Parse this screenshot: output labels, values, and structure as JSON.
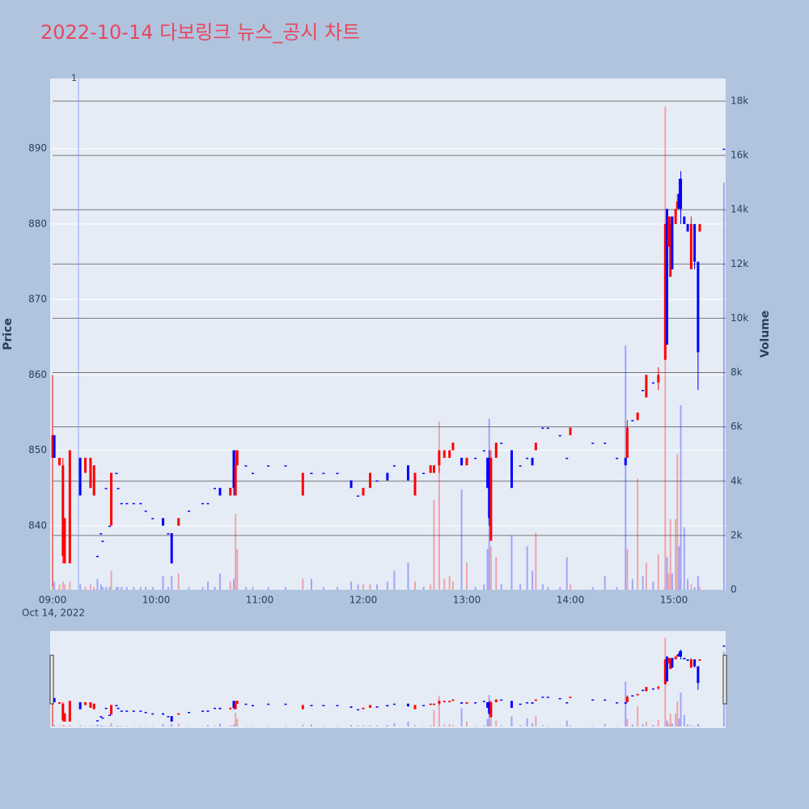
{
  "chart_data": {
    "type": "candlestick",
    "title": "2022-10-14 다보링크 뉴스_공시 차트",
    "y_title": "Price",
    "y2_title": "Volume",
    "date_label": "Oct 14, 2022",
    "xlim": [
      "09:00",
      "15:30"
    ],
    "xticks": [
      "09:00",
      "10:00",
      "11:00",
      "12:00",
      "13:00",
      "14:00",
      "15:00"
    ],
    "ylim": [
      831.5,
      899.3
    ],
    "yticks": [
      840,
      850,
      860,
      870,
      880,
      890
    ],
    "y2lim": [
      0,
      18834
    ],
    "y2ticks": [
      0,
      {
        "value": 2000,
        "label": "2k"
      },
      {
        "value": 4000,
        "label": "4k"
      },
      {
        "value": 6000,
        "label": "6k"
      },
      {
        "value": 8000,
        "label": "8k"
      },
      {
        "value": 10000,
        "label": "10k"
      },
      {
        "value": 12000,
        "label": "12k"
      },
      {
        "value": 14000,
        "label": "14k"
      },
      {
        "value": 16000,
        "label": "16k"
      },
      {
        "value": 18000,
        "label": "18k"
      }
    ],
    "increasing_color": "#ff0000",
    "decreasing_color": "#0000ff",
    "volume_up_color": "rgba(255,0,0,0.3)",
    "volume_down_color": "rgba(0,0,255,0.3)",
    "grid": true,
    "rangeslider": true,
    "annotations": [
      {
        "x": "09:15",
        "text": "1"
      }
    ],
    "x": [
      "09:00",
      "09:01",
      "09:04",
      "09:06",
      "09:07",
      "09:10",
      "09:16",
      "09:19",
      "09:22",
      "09:24",
      "09:26",
      "09:28",
      "09:29",
      "09:31",
      "09:33",
      "09:34",
      "09:37",
      "09:38",
      "09:40",
      "09:43",
      "09:47",
      "09:51",
      "09:54",
      "09:58",
      "10:04",
      "10:07",
      "10:09",
      "10:13",
      "10:19",
      "10:27",
      "10:30",
      "10:34",
      "10:37",
      "10:43",
      "10:45",
      "10:46",
      "10:47",
      "10:52",
      "10:56",
      "11:05",
      "11:15",
      "11:25",
      "11:30",
      "11:37",
      "11:45",
      "11:53",
      "11:57",
      "12:00",
      "12:04",
      "12:08",
      "12:14",
      "12:18",
      "12:26",
      "12:30",
      "12:35",
      "12:39",
      "12:41",
      "12:44",
      "12:47",
      "12:50",
      "12:52",
      "12:57",
      "13:00",
      "13:05",
      "13:10",
      "13:12",
      "13:13",
      "13:14",
      "13:17",
      "13:20",
      "13:26",
      "13:31",
      "13:35",
      "13:38",
      "13:40",
      "13:44",
      "13:47",
      "13:54",
      "13:58",
      "14:00",
      "14:13",
      "14:20",
      "14:27",
      "14:32",
      "14:33",
      "14:36",
      "14:39",
      "14:42",
      "14:44",
      "14:48",
      "14:51",
      "14:55",
      "14:56",
      "14:57",
      "14:58",
      "14:59",
      "15:01",
      "15:02",
      "15:03",
      "15:04",
      "15:06",
      "15:08",
      "15:10",
      "15:12",
      "15:14",
      "15:15",
      "15:29"
    ],
    "open": [
      849,
      852,
      848,
      836,
      835,
      835,
      849,
      847,
      845,
      844,
      836,
      839,
      838,
      845,
      840,
      840,
      847,
      845,
      843,
      843,
      843,
      843,
      842,
      841,
      841,
      839,
      839,
      840,
      842,
      843,
      843,
      845,
      845,
      844,
      850,
      844,
      848,
      848,
      847,
      848,
      848,
      844,
      847,
      847,
      847,
      846,
      844,
      844,
      845,
      846,
      847,
      848,
      848,
      844,
      847,
      847,
      847,
      848,
      849,
      849,
      850,
      849,
      848,
      849,
      850,
      849,
      849,
      838,
      849,
      851,
      850,
      848,
      849,
      849,
      850,
      853,
      853,
      852,
      849,
      852,
      851,
      851,
      849,
      849,
      849,
      854,
      854,
      858,
      857,
      859,
      859,
      862,
      882,
      877,
      873,
      881,
      880,
      882,
      884,
      886,
      881,
      880,
      874,
      880,
      875,
      879,
      890
    ],
    "high": [
      860,
      852,
      849,
      849,
      841,
      850,
      849,
      849,
      849,
      848,
      836,
      839,
      838,
      845,
      840,
      847,
      847,
      845,
      843,
      843,
      843,
      843,
      842,
      841,
      841,
      839,
      839,
      841,
      842,
      843,
      843,
      845,
      845,
      845,
      850,
      850,
      850,
      848,
      847,
      848,
      848,
      847,
      847,
      847,
      847,
      846,
      844,
      845,
      847,
      846,
      847,
      848,
      848,
      847,
      847,
      848,
      848,
      850,
      850,
      850,
      851,
      849,
      849,
      849,
      850,
      849,
      850,
      850,
      851,
      851,
      850,
      848,
      849,
      849,
      851,
      853,
      853,
      852,
      849,
      853,
      851,
      851,
      849,
      849,
      854,
      854,
      855,
      858,
      860,
      859,
      861,
      880,
      882,
      881,
      881,
      881,
      882,
      884,
      886,
      887,
      881,
      880,
      881,
      880,
      875,
      880,
      890
    ],
    "low": [
      832,
      849,
      848,
      835,
      835,
      835,
      844,
      847,
      845,
      844,
      836,
      839,
      838,
      845,
      840,
      840,
      847,
      845,
      843,
      843,
      843,
      843,
      842,
      841,
      840,
      839,
      835,
      840,
      842,
      843,
      843,
      845,
      844,
      844,
      844,
      844,
      848,
      848,
      847,
      848,
      848,
      844,
      847,
      847,
      847,
      845,
      844,
      844,
      845,
      846,
      846,
      848,
      846,
      844,
      847,
      847,
      847,
      847,
      849,
      849,
      850,
      848,
      848,
      849,
      850,
      845,
      840,
      838,
      849,
      851,
      845,
      848,
      849,
      848,
      850,
      853,
      853,
      852,
      849,
      852,
      851,
      851,
      849,
      848,
      849,
      854,
      854,
      858,
      857,
      859,
      858,
      862,
      864,
      877,
      873,
      874,
      880,
      882,
      882,
      880,
      880,
      879,
      874,
      874,
      858,
      879,
      890
    ],
    "close": [
      852,
      849,
      849,
      848,
      841,
      850,
      844,
      849,
      849,
      848,
      836,
      839,
      838,
      845,
      840,
      847,
      847,
      845,
      843,
      843,
      843,
      843,
      842,
      841,
      840,
      839,
      835,
      841,
      842,
      843,
      843,
      845,
      844,
      845,
      845,
      848,
      850,
      848,
      847,
      848,
      848,
      847,
      847,
      847,
      847,
      845,
      844,
      845,
      847,
      846,
      846,
      848,
      846,
      847,
      847,
      848,
      848,
      850,
      850,
      850,
      851,
      848,
      849,
      849,
      850,
      845,
      841,
      849,
      851,
      851,
      845,
      848,
      849,
      848,
      851,
      853,
      853,
      852,
      849,
      853,
      851,
      851,
      849,
      848,
      853,
      854,
      855,
      858,
      860,
      859,
      860,
      880,
      864,
      881,
      880,
      874,
      882,
      883,
      882,
      882,
      880,
      879,
      880,
      875,
      863,
      880,
      890
    ],
    "volume": [
      200,
      300,
      200,
      300,
      200,
      300,
      200,
      100,
      200,
      100,
      400,
      200,
      100,
      100,
      100,
      700,
      100,
      100,
      100,
      100,
      100,
      100,
      100,
      100,
      500,
      100,
      500,
      600,
      100,
      100,
      300,
      100,
      600,
      300,
      400,
      2800,
      1500,
      100,
      100,
      100,
      100,
      400,
      400,
      100,
      100,
      300,
      200,
      200,
      200,
      200,
      300,
      700,
      1000,
      300,
      100,
      200,
      3300,
      6200,
      400,
      500,
      300,
      3700,
      1000,
      100,
      200,
      1500,
      6300,
      1600,
      1200,
      200,
      2000,
      200,
      1600,
      700,
      2100,
      200,
      100,
      100,
      1200,
      200,
      100,
      500,
      100,
      9000,
      1500,
      400,
      4100,
      500,
      1000,
      300,
      1300,
      17800,
      1200,
      600,
      2600,
      600,
      2600,
      5000,
      1600,
      6800,
      2300,
      400,
      200,
      100,
      500,
      100,
      15000
    ]
  }
}
